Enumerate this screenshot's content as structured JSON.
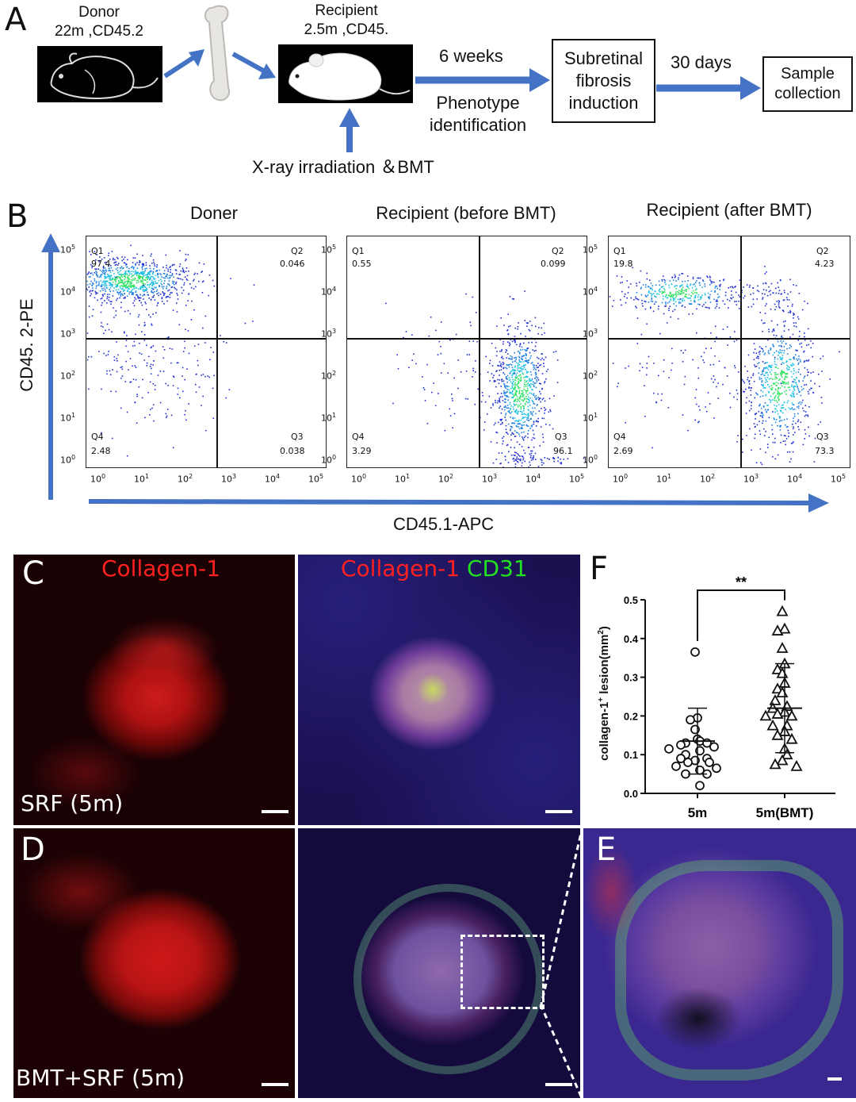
{
  "panels": {
    "A": "A",
    "B": "B",
    "C": "C",
    "D": "D",
    "E": "E",
    "F": "F"
  },
  "panelA": {
    "donor_line1": "Donor",
    "donor_line2": "22m ,CD45.2",
    "recipient_line1": "Recipient",
    "recipient_line2": "2.5m ,CD45.",
    "weeks": "6 weeks",
    "phenotype_line1": "Phenotype",
    "phenotype_line2": "identification",
    "xray": "X-ray irradiation ＆BMT",
    "subretinal_line1": "Subretinal",
    "subretinal_line2": "fibrosis",
    "subretinal_line3": "induction",
    "days": "30 days",
    "sample_line1": "Sample",
    "sample_line2": "collection",
    "colors": {
      "arrow": "#4472c4"
    }
  },
  "panelB": {
    "titles": [
      "Doner",
      "Recipient (before BMT)",
      "Recipient (after BMT)"
    ],
    "y_axis_label": "CD45. 2-PE",
    "x_axis_label": "CD45.1-APC",
    "tick_labels": [
      "10",
      "10",
      "10",
      "10",
      "10",
      "10"
    ],
    "tick_exps": [
      "0",
      "1",
      "2",
      "3",
      "4",
      "5"
    ],
    "plots": [
      {
        "q1": "Q1",
        "q1v": "97.4",
        "q2": "Q2",
        "q2v": "0.046",
        "q3": "Q3",
        "q3v": "0.038",
        "q4": "Q4",
        "q4v": "2.48"
      },
      {
        "q1": "Q1",
        "q1v": "0.55",
        "q2": "Q2",
        "q2v": "0.099",
        "q3": "Q3",
        "q3v": "96.1",
        "q4": "Q4",
        "q4v": "3.29"
      },
      {
        "q1": "Q1",
        "q1v": "19.8",
        "q2": "Q2",
        "q2v": "4.23",
        "q3": "Q3",
        "q3v": "73.3",
        "q4": "Q4",
        "q4v": "2.69"
      }
    ]
  },
  "panelC": {
    "label_left": "Collagen-1",
    "label_right_red": "Collagen-1",
    "label_right_green": "CD31",
    "caption": "SRF (5m)"
  },
  "panelD": {
    "caption": "BMT+SRF (5m)"
  },
  "chart_data": {
    "type": "scatter",
    "title": "",
    "xlabel": "",
    "ylabel": "collagen-1+ lesion(mm2)",
    "ylabel_main": "collagen-1",
    "ylabel_sup": "+",
    "ylabel_mid": " lesion(mm",
    "ylabel_sup2": "2",
    "ylabel_end": ")",
    "ylim": [
      0.0,
      0.5
    ],
    "yticks": [
      "0.0",
      "0.1",
      "0.2",
      "0.3",
      "0.4",
      "0.5"
    ],
    "categories": [
      "5m",
      "5m(BMT)"
    ],
    "significance": "**",
    "series": [
      {
        "marker": "circle",
        "mean": 0.135,
        "sd_low": 0.05,
        "sd_high": 0.22,
        "values": [
          0.365,
          0.195,
          0.19,
          0.165,
          0.14,
          0.135,
          0.13,
          0.13,
          0.125,
          0.12,
          0.115,
          0.11,
          0.1,
          0.09,
          0.09,
          0.085,
          0.08,
          0.08,
          0.07,
          0.065,
          0.06,
          0.05,
          0.05,
          0.02
        ]
      },
      {
        "marker": "triangle",
        "mean": 0.22,
        "sd_low": 0.105,
        "sd_high": 0.335,
        "values": [
          0.47,
          0.425,
          0.42,
          0.375,
          0.335,
          0.32,
          0.31,
          0.285,
          0.27,
          0.26,
          0.24,
          0.225,
          0.22,
          0.21,
          0.205,
          0.2,
          0.2,
          0.175,
          0.175,
          0.16,
          0.15,
          0.14,
          0.115,
          0.1,
          0.085,
          0.075,
          0.07
        ]
      }
    ]
  }
}
